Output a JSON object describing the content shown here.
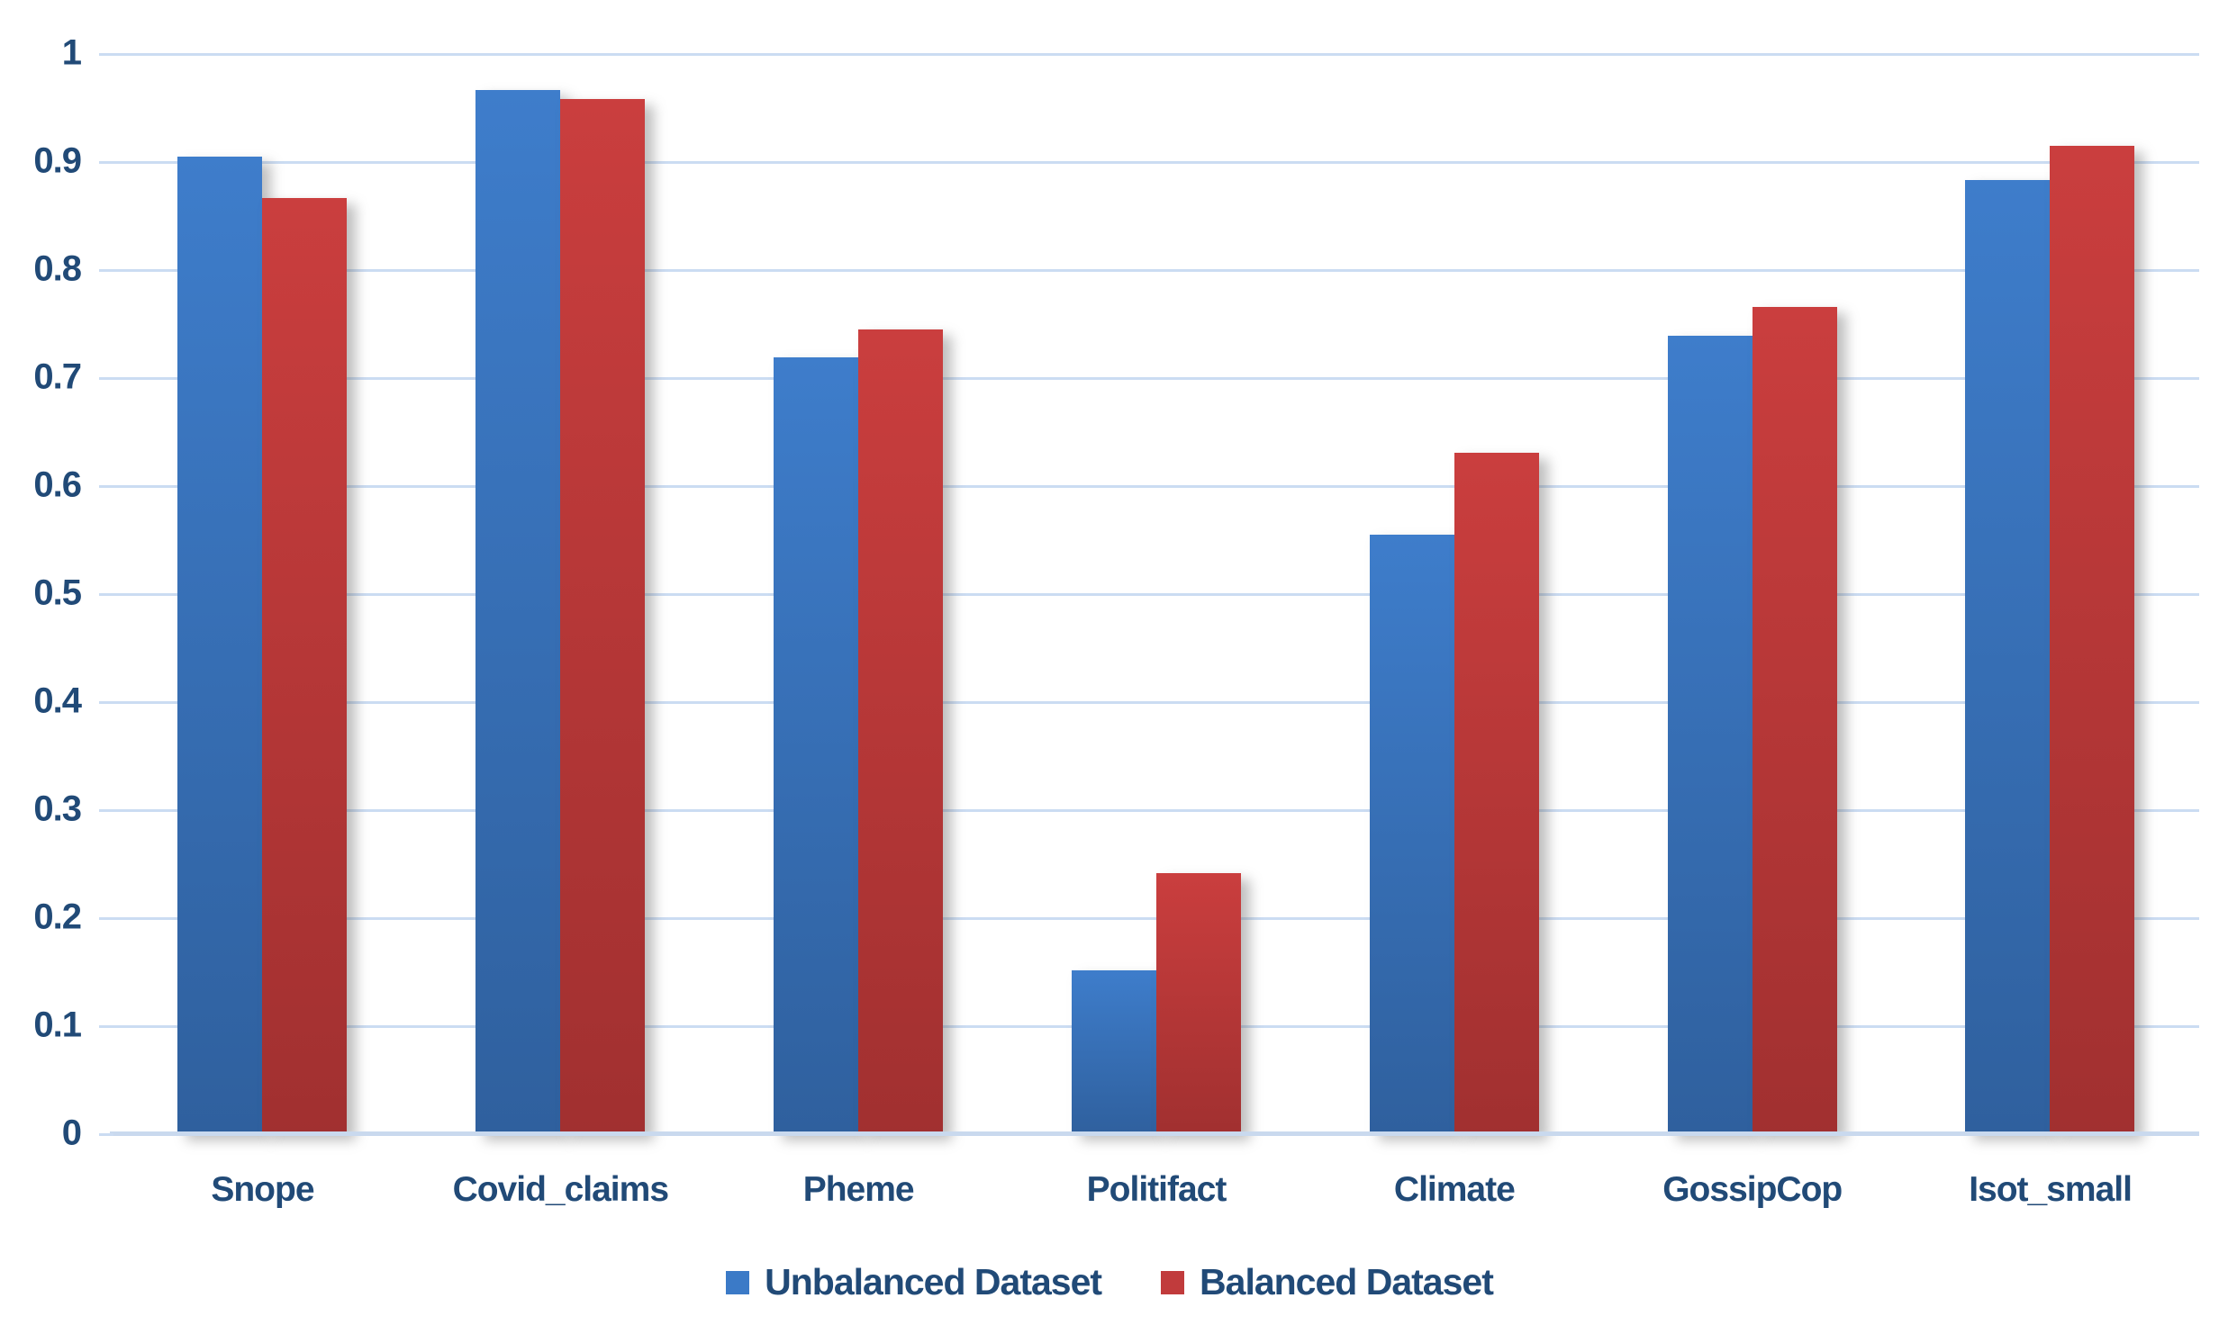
{
  "chart_data": {
    "type": "bar",
    "title": "",
    "categories": [
      "Snope",
      "Covid_claims",
      "Pheme",
      "Politifact",
      "Climate",
      "GossipCop",
      "Isot_small"
    ],
    "series": [
      {
        "name": "Unbalanced Dataset",
        "legend_color": "#3B7AC7",
        "color_top": "#3E7DCB",
        "color_bottom": "#2F609E",
        "values": [
          0.905,
          0.967,
          0.719,
          0.152,
          0.555,
          0.739,
          0.883
        ]
      },
      {
        "name": "Balanced Dataset",
        "legend_color": "#C13B3C",
        "color_top": "#CA3E3E",
        "color_bottom": "#A13030",
        "values": [
          0.867,
          0.958,
          0.745,
          0.242,
          0.631,
          0.766,
          0.915
        ]
      }
    ],
    "ylim": [
      0,
      1
    ],
    "yticks": [
      "1",
      "0.9",
      "0.8",
      "0.7",
      "0.6",
      "0.5",
      "0.4",
      "0.3",
      "0.2",
      "0.1",
      "0"
    ],
    "grid": true,
    "legend_position": "bottom",
    "colors": {
      "background": "#FFFFFF",
      "text": "#214A77",
      "gridline": "#CBDCF2",
      "axis": "#C9D9EE"
    }
  }
}
